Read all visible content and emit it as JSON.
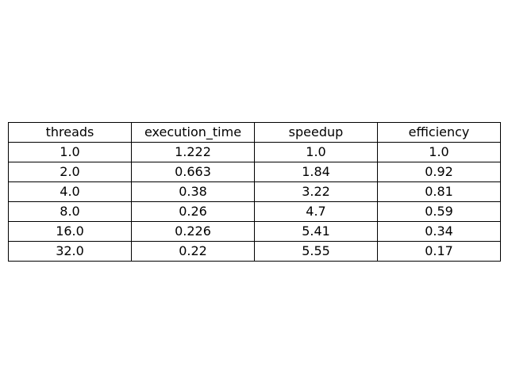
{
  "chart_data": {
    "type": "table",
    "columns": [
      "threads",
      "execution_time",
      "speedup",
      "efficiency"
    ],
    "rows": [
      [
        "1.0",
        "1.222",
        "1.0",
        "1.0"
      ],
      [
        "2.0",
        "0.663",
        "1.84",
        "0.92"
      ],
      [
        "4.0",
        "0.38",
        "3.22",
        "0.81"
      ],
      [
        "8.0",
        "0.26",
        "4.7",
        "0.59"
      ],
      [
        "16.0",
        "0.226",
        "5.41",
        "0.34"
      ],
      [
        "32.0",
        "0.22",
        "5.55",
        "0.17"
      ]
    ]
  }
}
